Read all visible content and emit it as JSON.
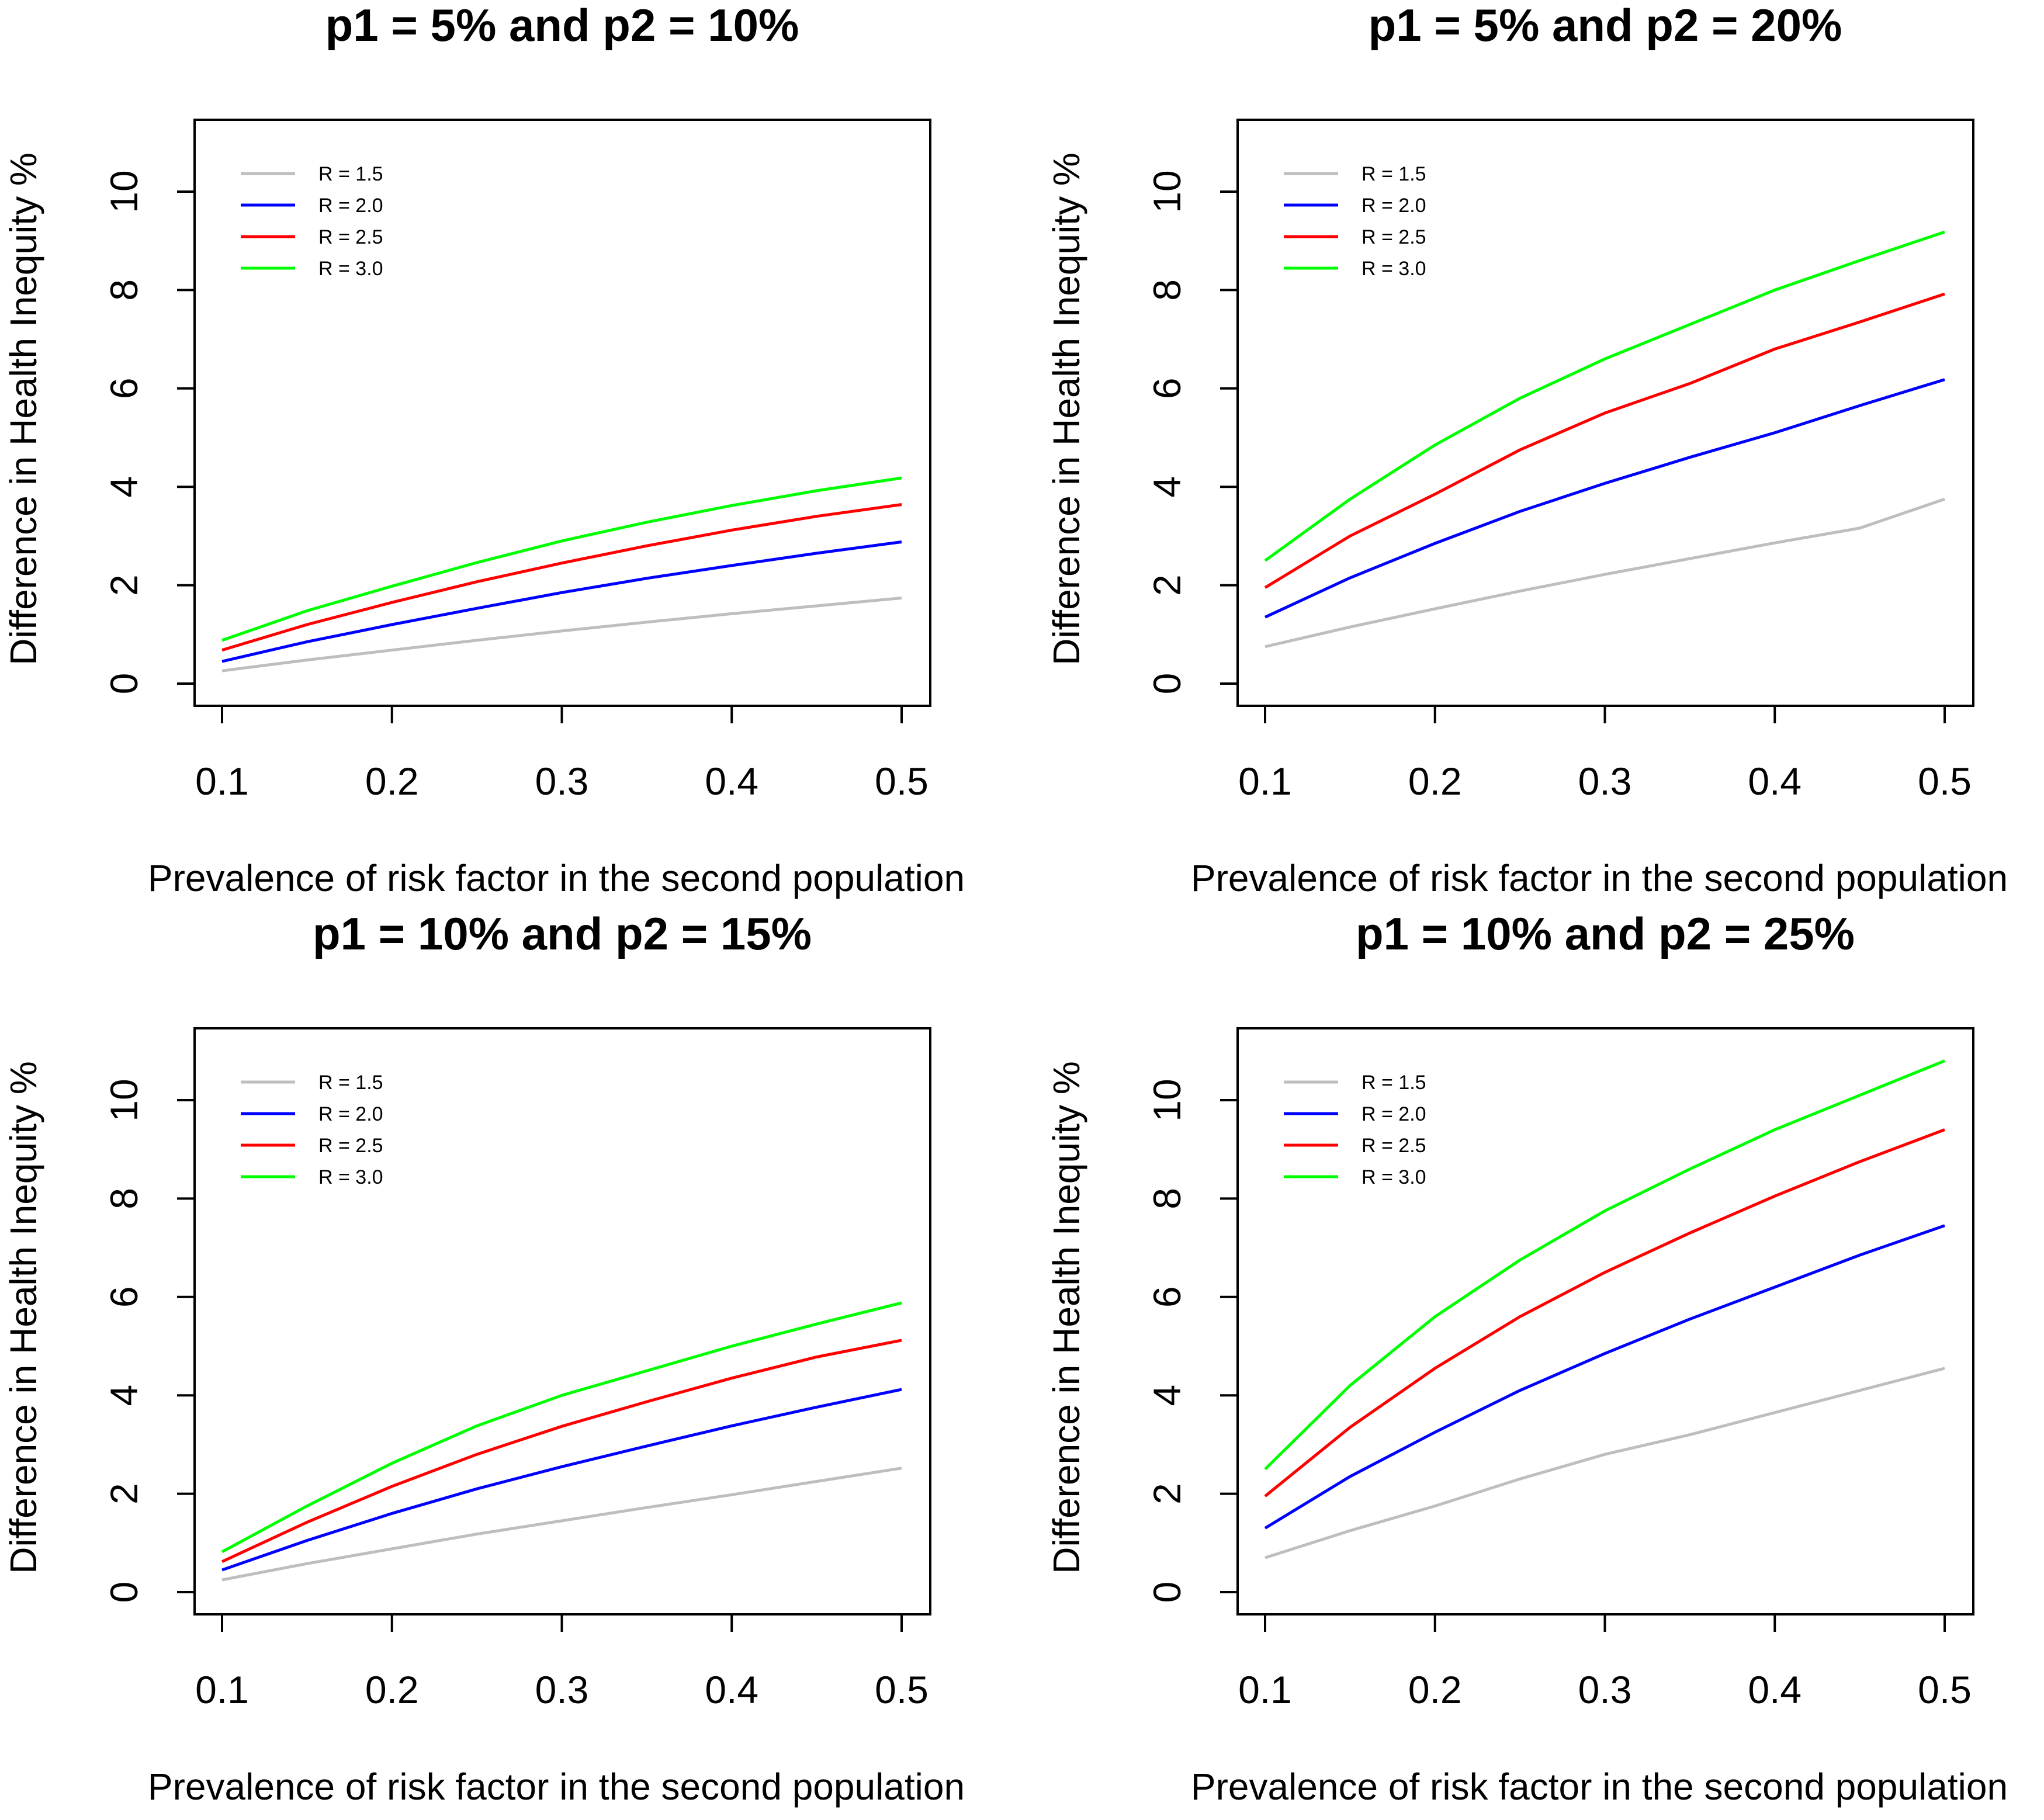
{
  "colors": {
    "R = 1.5": "#bebebe",
    "R = 2.0": "#0000ff",
    "R = 2.5": "#ff0000",
    "R = 3.0": "#00ff00"
  },
  "chart_data": [
    {
      "type": "line",
      "title": "p1 = 5% and p2 = 10%",
      "xlabel": "Prevalence of risk factor in the second population",
      "ylabel": "Difference in Health Inequity %",
      "xlim": [
        0.1,
        0.5
      ],
      "ylim": [
        0,
        10
      ],
      "xticks": [
        "0.1",
        "0.2",
        "0.3",
        "0.4",
        "0.5"
      ],
      "yticks": [
        "0",
        "2",
        "4",
        "6",
        "8",
        "10"
      ],
      "legend_position": "top-left",
      "x": [
        0.1,
        0.15,
        0.2,
        0.25,
        0.3,
        0.35,
        0.4,
        0.45,
        0.5
      ],
      "series": [
        {
          "name": "R = 1.5",
          "values": [
            0.26,
            0.48,
            0.68,
            0.88,
            1.07,
            1.25,
            1.42,
            1.58,
            1.74
          ]
        },
        {
          "name": "R = 2.0",
          "values": [
            0.45,
            0.85,
            1.2,
            1.53,
            1.85,
            2.14,
            2.4,
            2.65,
            2.88
          ]
        },
        {
          "name": "R = 2.5",
          "values": [
            0.68,
            1.2,
            1.65,
            2.07,
            2.45,
            2.8,
            3.12,
            3.4,
            3.64
          ]
        },
        {
          "name": "R = 3.0",
          "values": [
            0.88,
            1.48,
            1.98,
            2.46,
            2.9,
            3.28,
            3.62,
            3.92,
            4.18
          ]
        }
      ]
    },
    {
      "type": "line",
      "title": "p1 = 5% and p2 = 20%",
      "xlabel": "Prevalence of risk factor in the second population",
      "ylabel": "Difference in Health Inequity %",
      "xlim": [
        0.1,
        0.5
      ],
      "ylim": [
        0,
        10
      ],
      "xticks": [
        "0.1",
        "0.2",
        "0.3",
        "0.4",
        "0.5"
      ],
      "yticks": [
        "0",
        "2",
        "4",
        "6",
        "8",
        "10"
      ],
      "legend_position": "top-left",
      "x": [
        0.1,
        0.15,
        0.2,
        0.25,
        0.3,
        0.35,
        0.4,
        0.45,
        0.5
      ],
      "series": [
        {
          "name": "R = 1.5",
          "values": [
            0.75,
            1.15,
            1.52,
            1.88,
            2.22,
            2.54,
            2.86,
            3.16,
            3.75
          ]
        },
        {
          "name": "R = 2.0",
          "values": [
            1.35,
            2.15,
            2.85,
            3.5,
            4.07,
            4.6,
            5.1,
            5.65,
            6.18
          ]
        },
        {
          "name": "R = 2.5",
          "values": [
            1.95,
            3.0,
            3.85,
            4.75,
            5.5,
            6.1,
            6.8,
            7.35,
            7.92
          ]
        },
        {
          "name": "R = 3.0",
          "values": [
            2.5,
            3.75,
            4.85,
            5.8,
            6.6,
            7.3,
            8.0,
            8.6,
            9.18
          ]
        }
      ]
    },
    {
      "type": "line",
      "title": "p1 = 10% and p2 = 15%",
      "xlabel": "Prevalence of risk factor in the second population",
      "ylabel": "Difference in Health Inequity %",
      "xlim": [
        0.1,
        0.5
      ],
      "ylim": [
        0,
        10
      ],
      "xticks": [
        "0.1",
        "0.2",
        "0.3",
        "0.4",
        "0.5"
      ],
      "yticks": [
        "0",
        "2",
        "4",
        "6",
        "8",
        "10"
      ],
      "legend_position": "top-left",
      "x": [
        0.1,
        0.15,
        0.2,
        0.25,
        0.3,
        0.35,
        0.4,
        0.45,
        0.5
      ],
      "series": [
        {
          "name": "R = 1.5",
          "values": [
            0.25,
            0.58,
            0.88,
            1.18,
            1.45,
            1.72,
            1.98,
            2.25,
            2.52
          ]
        },
        {
          "name": "R = 2.0",
          "values": [
            0.45,
            1.05,
            1.6,
            2.1,
            2.55,
            2.97,
            3.38,
            3.76,
            4.12
          ]
        },
        {
          "name": "R = 2.5",
          "values": [
            0.62,
            1.42,
            2.15,
            2.8,
            3.37,
            3.87,
            4.35,
            4.78,
            5.12
          ]
        },
        {
          "name": "R = 3.0",
          "values": [
            0.82,
            1.75,
            2.62,
            3.38,
            4.0,
            4.5,
            5.0,
            5.45,
            5.88
          ]
        }
      ]
    },
    {
      "type": "line",
      "title": "p1 = 10% and p2 = 25%",
      "xlabel": "Prevalence of risk factor in the second population",
      "ylabel": "Difference in Health Inequity %",
      "xlim": [
        0.1,
        0.5
      ],
      "ylim": [
        0,
        10
      ],
      "xticks": [
        "0.1",
        "0.2",
        "0.3",
        "0.4",
        "0.5"
      ],
      "yticks": [
        "0",
        "2",
        "4",
        "6",
        "8",
        "10"
      ],
      "legend_position": "top-left",
      "x": [
        0.1,
        0.15,
        0.2,
        0.25,
        0.3,
        0.35,
        0.4,
        0.45,
        0.5
      ],
      "series": [
        {
          "name": "R = 1.5",
          "values": [
            0.7,
            1.25,
            1.75,
            2.3,
            2.8,
            3.2,
            3.65,
            4.1,
            4.55
          ]
        },
        {
          "name": "R = 2.0",
          "values": [
            1.3,
            2.35,
            3.25,
            4.1,
            4.85,
            5.55,
            6.2,
            6.85,
            7.45
          ]
        },
        {
          "name": "R = 2.5",
          "values": [
            1.95,
            3.35,
            4.55,
            5.6,
            6.5,
            7.3,
            8.05,
            8.75,
            9.4
          ]
        },
        {
          "name": "R = 3.0",
          "values": [
            2.5,
            4.2,
            5.6,
            6.75,
            7.75,
            8.6,
            9.4,
            10.1,
            10.8
          ]
        }
      ]
    }
  ]
}
